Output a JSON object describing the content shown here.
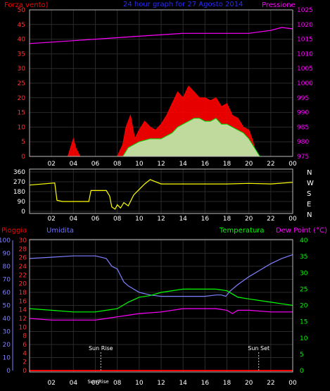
{
  "chart_data": [
    {
      "type": "line",
      "title": "24 hour graph for  27 Agosto 2014",
      "left_label": "Forza vento)",
      "right_label": "Pressione",
      "x_ticks": [
        "02",
        "04",
        "06",
        "08",
        "10",
        "12",
        "14",
        "16",
        "18",
        "20",
        "22",
        "00"
      ],
      "y_left_ticks": [
        0,
        5,
        10,
        15,
        20,
        25,
        30,
        35,
        40,
        45,
        50
      ],
      "y_left_range": [
        0,
        50
      ],
      "y_right_ticks": [
        975,
        980,
        985,
        990,
        995,
        1000,
        1005,
        1010,
        1015,
        1020,
        1025
      ],
      "y_right_range": [
        975,
        1025
      ],
      "series": [
        {
          "role": "wind-gust",
          "color": "#ff0000",
          "x": [
            0,
            3.5,
            4,
            4.2,
            4.6,
            8,
            8.5,
            8.8,
            9.2,
            9.6,
            10,
            10.5,
            11,
            11.5,
            12,
            12.5,
            13,
            13.5,
            14,
            14.5,
            15,
            15.5,
            16,
            16.5,
            17,
            17.5,
            18,
            18.5,
            19,
            19.5,
            20,
            20.3,
            20.6,
            21,
            24
          ],
          "y": [
            0,
            0,
            6,
            3,
            0,
            0,
            4,
            10,
            14,
            6,
            9,
            12,
            10,
            9,
            11,
            14,
            18,
            22,
            20,
            24,
            22,
            20,
            20,
            19,
            20,
            17,
            18,
            14,
            13,
            10,
            9,
            6,
            2,
            0,
            0
          ]
        },
        {
          "role": "wind-average",
          "color": "#00dd00",
          "x": [
            0,
            8.5,
            9,
            10,
            11,
            12,
            13,
            13.5,
            14,
            14.5,
            15,
            15.5,
            16,
            16.5,
            17,
            17.5,
            18,
            18.5,
            19,
            19.5,
            20,
            20.5,
            21,
            24
          ],
          "y": [
            0,
            0,
            3,
            5,
            6,
            6,
            8,
            10,
            11,
            12,
            13,
            13,
            12,
            12,
            13,
            11,
            11,
            10,
            9,
            8,
            6,
            3,
            0,
            0
          ]
        },
        {
          "role": "pressure",
          "color": "#ff00ff",
          "axis": "right",
          "x": [
            0,
            2,
            4,
            6,
            8,
            10,
            12,
            14,
            16,
            18,
            20,
            21,
            22,
            23,
            24
          ],
          "y": [
            1013.5,
            1014,
            1014.5,
            1015,
            1015.5,
            1016,
            1016.5,
            1017,
            1017,
            1017,
            1017,
            1017.5,
            1018,
            1019,
            1018.5
          ]
        }
      ]
    },
    {
      "type": "line",
      "title": "",
      "y_ticks": [
        0,
        90,
        180,
        270,
        360
      ],
      "y_range": [
        0,
        360
      ],
      "compass_labels": [
        "N",
        "W",
        "S",
        "E",
        "N"
      ],
      "x_ticks": [
        "02",
        "04",
        "06",
        "08",
        "10",
        "12",
        "14",
        "16",
        "18",
        "20",
        "22",
        "00"
      ],
      "series": [
        {
          "role": "wind-direction",
          "color": "#ffff00",
          "x": [
            0,
            2.3,
            2.5,
            3,
            5,
            5.4,
            5.6,
            6,
            7,
            7.3,
            7.5,
            7.8,
            8,
            8.3,
            8.6,
            9,
            9.5,
            10,
            10.5,
            11,
            12,
            14,
            16,
            18,
            20,
            22,
            24
          ],
          "y": [
            240,
            260,
            100,
            90,
            90,
            90,
            190,
            190,
            190,
            140,
            40,
            20,
            60,
            30,
            80,
            50,
            150,
            200,
            250,
            290,
            250,
            250,
            250,
            250,
            255,
            250,
            265
          ]
        }
      ]
    },
    {
      "type": "line",
      "title": "",
      "labels": {
        "rain": "Pioggia",
        "humidity": "Umidita",
        "temperature": "Temperatura",
        "dew_point": "Dew Point (°C)"
      },
      "y_far_left_ticks": [
        0,
        10,
        20,
        30,
        40,
        50,
        60,
        70,
        80,
        90,
        100
      ],
      "y_left_ticks": [
        0,
        2,
        4,
        6,
        8,
        10,
        12,
        14,
        16,
        18,
        20,
        22,
        24,
        26,
        28,
        30
      ],
      "y_right_ticks": [
        0,
        5,
        10,
        15,
        20,
        25,
        30,
        35,
        40
      ],
      "x_ticks": [
        "02",
        "04",
        "06",
        "08",
        "10",
        "12",
        "14",
        "16",
        "18",
        "20",
        "22",
        "00"
      ],
      "annotations": [
        {
          "text": "Sun Rise",
          "x": 6.5
        },
        {
          "text": "Sun Set",
          "x": 20.9
        },
        {
          "text": "Sun Rise",
          "x": 4.9
        }
      ],
      "series": [
        {
          "role": "humidity",
          "color": "#8080ff",
          "axis": "left-percent",
          "x": [
            0,
            2,
            4,
            6,
            7,
            7.5,
            8,
            8.3,
            8.6,
            9,
            10,
            11,
            12,
            14,
            16,
            17,
            17.5,
            17.9,
            18.3,
            19,
            20,
            21,
            22,
            23,
            24
          ],
          "y": [
            86,
            87,
            88,
            88,
            86,
            80,
            78,
            73,
            68,
            65,
            60,
            58,
            57,
            57,
            57,
            58,
            58,
            57,
            61,
            66,
            72,
            77,
            82,
            86,
            89
          ]
        },
        {
          "role": "temperature",
          "color": "#00ff00",
          "axis": "right",
          "x": [
            0,
            2,
            4,
            6,
            7,
            8,
            9,
            10,
            11,
            12,
            14,
            16,
            17,
            18,
            18.5,
            19,
            20,
            21,
            22,
            23,
            24
          ],
          "y": [
            19,
            18.5,
            18,
            18,
            18.5,
            19,
            21,
            22.5,
            23,
            24,
            25,
            25,
            25,
            24.5,
            23.5,
            22.5,
            22,
            21.5,
            21,
            20.5,
            20
          ]
        },
        {
          "role": "dew-point",
          "color": "#ff00ff",
          "axis": "right",
          "x": [
            0,
            2,
            4,
            6,
            7,
            8,
            9,
            10,
            12,
            14,
            16,
            17,
            18,
            18.5,
            19,
            20,
            22,
            24
          ],
          "y": [
            16,
            15.5,
            15.5,
            15.5,
            16,
            16.5,
            17,
            17.5,
            18,
            19,
            19,
            19,
            18.5,
            17.5,
            18.5,
            18.5,
            18,
            18
          ]
        },
        {
          "role": "rain",
          "color": "#ff0000",
          "axis": "far-left",
          "x": [
            0,
            24
          ],
          "y": [
            0,
            0
          ]
        }
      ]
    }
  ]
}
